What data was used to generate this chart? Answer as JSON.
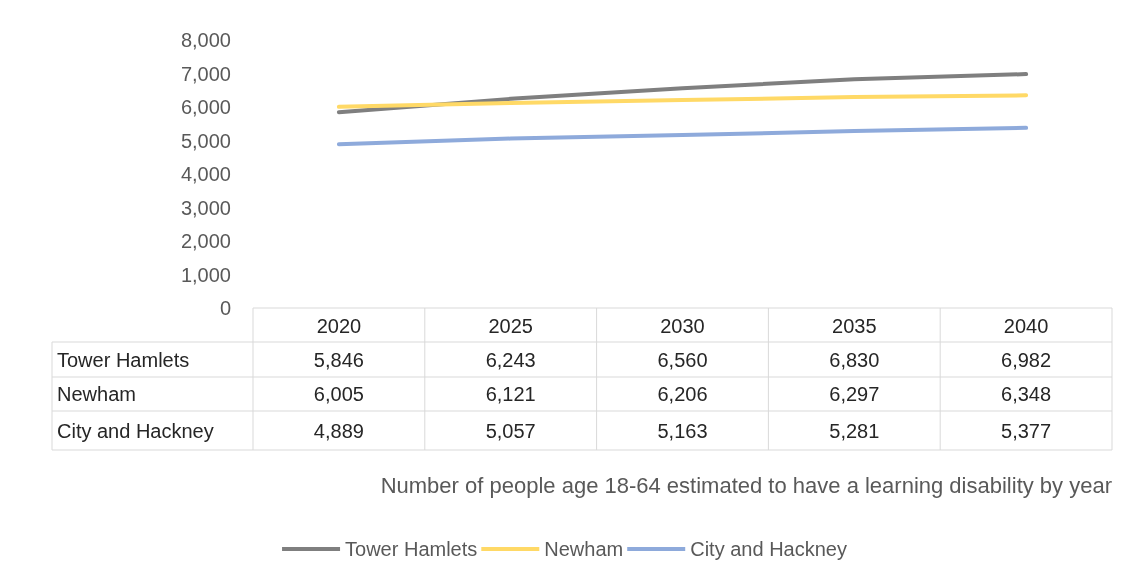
{
  "chart_data": {
    "type": "line",
    "annotations": [
      "Number of people age 18-64 estimated to have a learning disability by year"
    ],
    "categories": [
      "2020",
      "2025",
      "2030",
      "2035",
      "2040"
    ],
    "series": [
      {
        "name": "Tower Hamlets",
        "color": "#7f7f7f",
        "values": [
          5846,
          6243,
          6560,
          6830,
          6982
        ],
        "value_labels": [
          "5,846",
          "6,243",
          "6,560",
          "6,830",
          "6,982"
        ]
      },
      {
        "name": "Newham",
        "color": "#ffd966",
        "values": [
          6005,
          6121,
          6206,
          6297,
          6348
        ],
        "value_labels": [
          "6,005",
          "6,121",
          "6,206",
          "6,297",
          "6,348"
        ]
      },
      {
        "name": "City and Hackney",
        "color": "#8eaadb",
        "values": [
          4889,
          5057,
          5163,
          5281,
          5377
        ],
        "value_labels": [
          "4,889",
          "5,057",
          "5,163",
          "5,281",
          "5,377"
        ]
      }
    ],
    "ylim": [
      0,
      8000
    ],
    "yticks": [
      0,
      {
        "value": 1000,
        "label": "1,000"
      },
      {
        "value": 2000,
        "label": "2,000"
      },
      {
        "value": 3000,
        "label": "3,000"
      },
      {
        "value": 4000,
        "label": "4,000"
      },
      {
        "value": 5000,
        "label": "5,000"
      },
      {
        "value": 6000,
        "label": "6,000"
      },
      {
        "value": 7000,
        "label": "7,000"
      },
      {
        "value": 8000,
        "label": "8,000"
      }
    ],
    "grid": false,
    "legend": "bottom",
    "marker": "none",
    "line_style": "solid"
  }
}
